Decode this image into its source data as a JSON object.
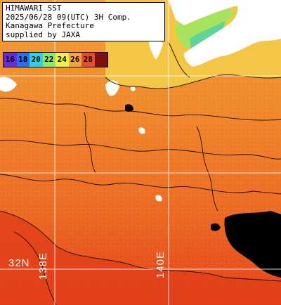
{
  "info": {
    "line1": "HIMAWARI SST",
    "line2": "2025/06/28 09(UTC) 3H Comp.",
    "line3": "Kanagawa Prefecture",
    "line4": "supplied by JAXA"
  },
  "color_scale": [
    {
      "label": "16",
      "color": "#6a2bd9"
    },
    {
      "label": "18",
      "color": "#2e6ff2"
    },
    {
      "label": "20",
      "color": "#2fd0e8"
    },
    {
      "label": "22",
      "color": "#8ee86a"
    },
    {
      "label": "24",
      "color": "#eef04a"
    },
    {
      "label": "26",
      "color": "#f3a53a"
    },
    {
      "label": "28",
      "color": "#e84a2a"
    },
    {
      "label": "",
      "color": "#7a1010"
    }
  ],
  "grid_labels": {
    "latitude": "32N",
    "longitude_1": "138E",
    "longitude_2": "140E"
  },
  "colors": {
    "land": "#ffffff",
    "cloud_missing": "#000000",
    "warm_sea": "#e8541e",
    "mid_sea": "#f08a2e",
    "cool_sea": "#f2c443",
    "cold_sea": "#9fe060",
    "grid": "#ffffff"
  }
}
